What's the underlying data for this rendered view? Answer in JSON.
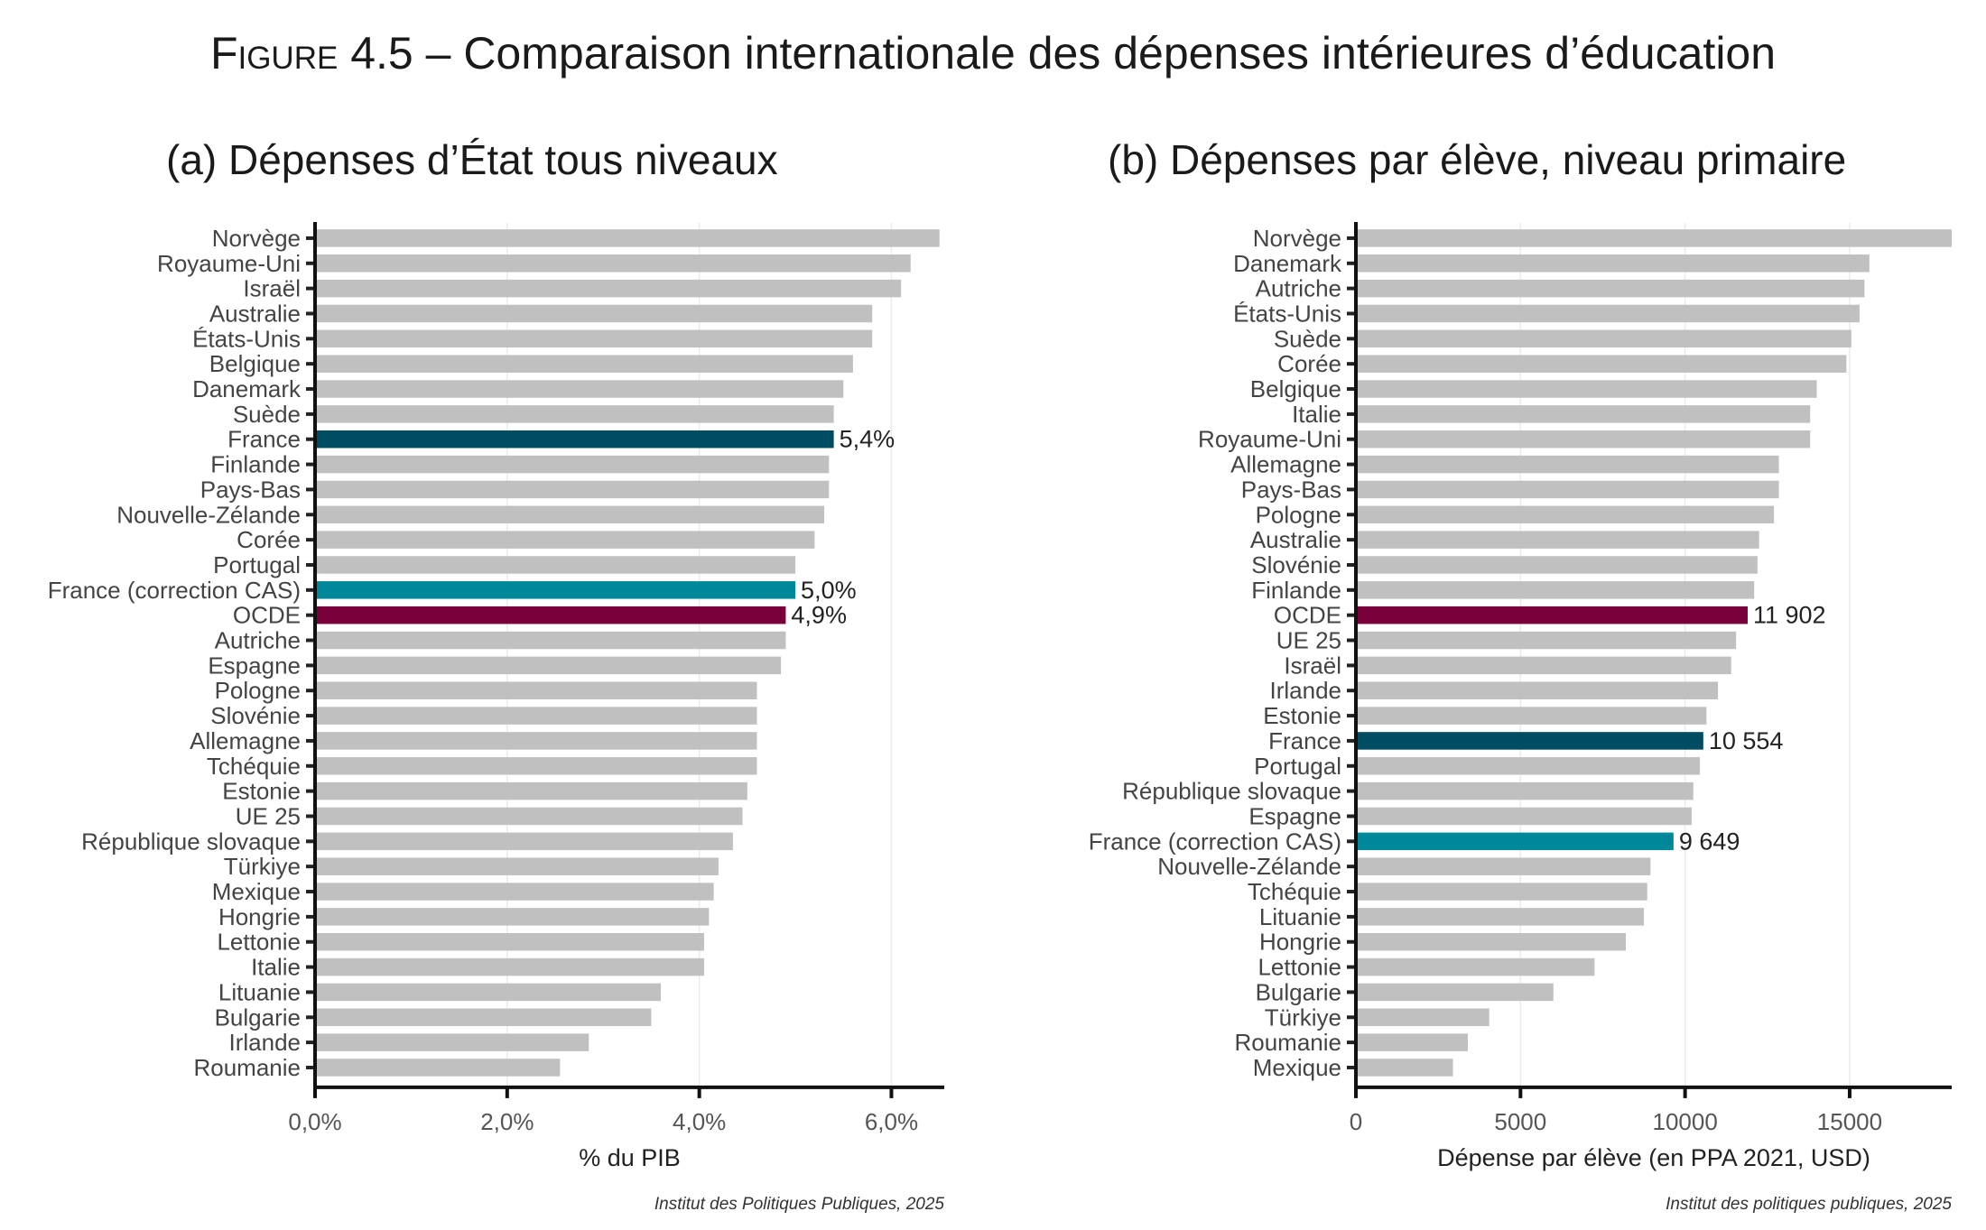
{
  "figure": {
    "title_prefix": "Figure 4.5",
    "title_rest": " – Comparaison internationale des dépenses intérieures d’éducation"
  },
  "colors": {
    "default": "#c0c0c0",
    "France": "#004c63",
    "France (correction CAS)": "#00889a",
    "OCDE": "#7a003c"
  },
  "chart_data": [
    {
      "type": "bar",
      "orientation": "horizontal",
      "title": "(a) Dépenses d’État tous niveaux",
      "xlabel": "% du PIB",
      "ylabel": "",
      "xlim": [
        0,
        6.55
      ],
      "xticks": [
        0,
        2,
        4,
        6
      ],
      "xtick_labels": [
        "0,0%",
        "2,0%",
        "4,0%",
        "6,0%"
      ],
      "grid": true,
      "source": "Institut des Politiques Publiques, 2025",
      "categories": [
        "Norvège",
        "Royaume-Uni",
        "Israël",
        "Australie",
        "États-Unis",
        "Belgique",
        "Danemark",
        "Suède",
        "France",
        "Finlande",
        "Pays-Bas",
        "Nouvelle-Zélande",
        "Corée",
        "Portugal",
        "France (correction CAS)",
        "OCDE",
        "Autriche",
        "Espagne",
        "Pologne",
        "Slovénie",
        "Allemagne",
        "Tchéquie",
        "Estonie",
        "UE 25",
        "République slovaque",
        "Türkiye",
        "Mexique",
        "Hongrie",
        "Lettonie",
        "Italie",
        "Lituanie",
        "Bulgarie",
        "Irlande",
        "Roumanie"
      ],
      "values": [
        6.5,
        6.2,
        6.1,
        5.8,
        5.8,
        5.6,
        5.5,
        5.4,
        5.4,
        5.35,
        5.35,
        5.3,
        5.2,
        5.0,
        5.0,
        4.9,
        4.9,
        4.85,
        4.6,
        4.6,
        4.6,
        4.6,
        4.5,
        4.45,
        4.35,
        4.2,
        4.15,
        4.1,
        4.05,
        4.05,
        3.6,
        3.5,
        2.85,
        2.55
      ],
      "data_labels": {
        "France": "5,4%",
        "France (correction CAS)": "5,0%",
        "OCDE": "4,9%"
      }
    },
    {
      "type": "bar",
      "orientation": "horizontal",
      "title": "(b) Dépenses par élève, niveau primaire",
      "xlabel": "Dépense par élève (en PPA 2021, USD)",
      "ylabel": "",
      "xlim": [
        0,
        18100
      ],
      "xticks": [
        0,
        5000,
        10000,
        15000
      ],
      "xtick_labels": [
        "0",
        "5000",
        "10000",
        "15000"
      ],
      "grid": true,
      "source": "Institut des politiques publiques, 2025",
      "categories": [
        "Norvège",
        "Danemark",
        "Autriche",
        "États-Unis",
        "Suède",
        "Corée",
        "Belgique",
        "Italie",
        "Royaume-Uni",
        "Allemagne",
        "Pays-Bas",
        "Pologne",
        "Australie",
        "Slovénie",
        "Finlande",
        "OCDE",
        "UE 25",
        "Israël",
        "Irlande",
        "Estonie",
        "France",
        "Portugal",
        "République slovaque",
        "Espagne",
        "France (correction CAS)",
        "Nouvelle-Zélande",
        "Tchéquie",
        "Lituanie",
        "Hongrie",
        "Lettonie",
        "Bulgarie",
        "Türkiye",
        "Roumanie",
        "Mexique"
      ],
      "values": [
        18100,
        15600,
        15450,
        15300,
        15050,
        14900,
        14000,
        13800,
        13800,
        12850,
        12850,
        12700,
        12250,
        12200,
        12100,
        11902,
        11550,
        11400,
        11000,
        10650,
        10554,
        10450,
        10250,
        10200,
        9649,
        8950,
        8850,
        8750,
        8200,
        7250,
        6000,
        4050,
        3400,
        2950
      ],
      "data_labels": {
        "OCDE": "11 902",
        "France": "10 554",
        "France (correction CAS)": "9 649"
      }
    }
  ]
}
